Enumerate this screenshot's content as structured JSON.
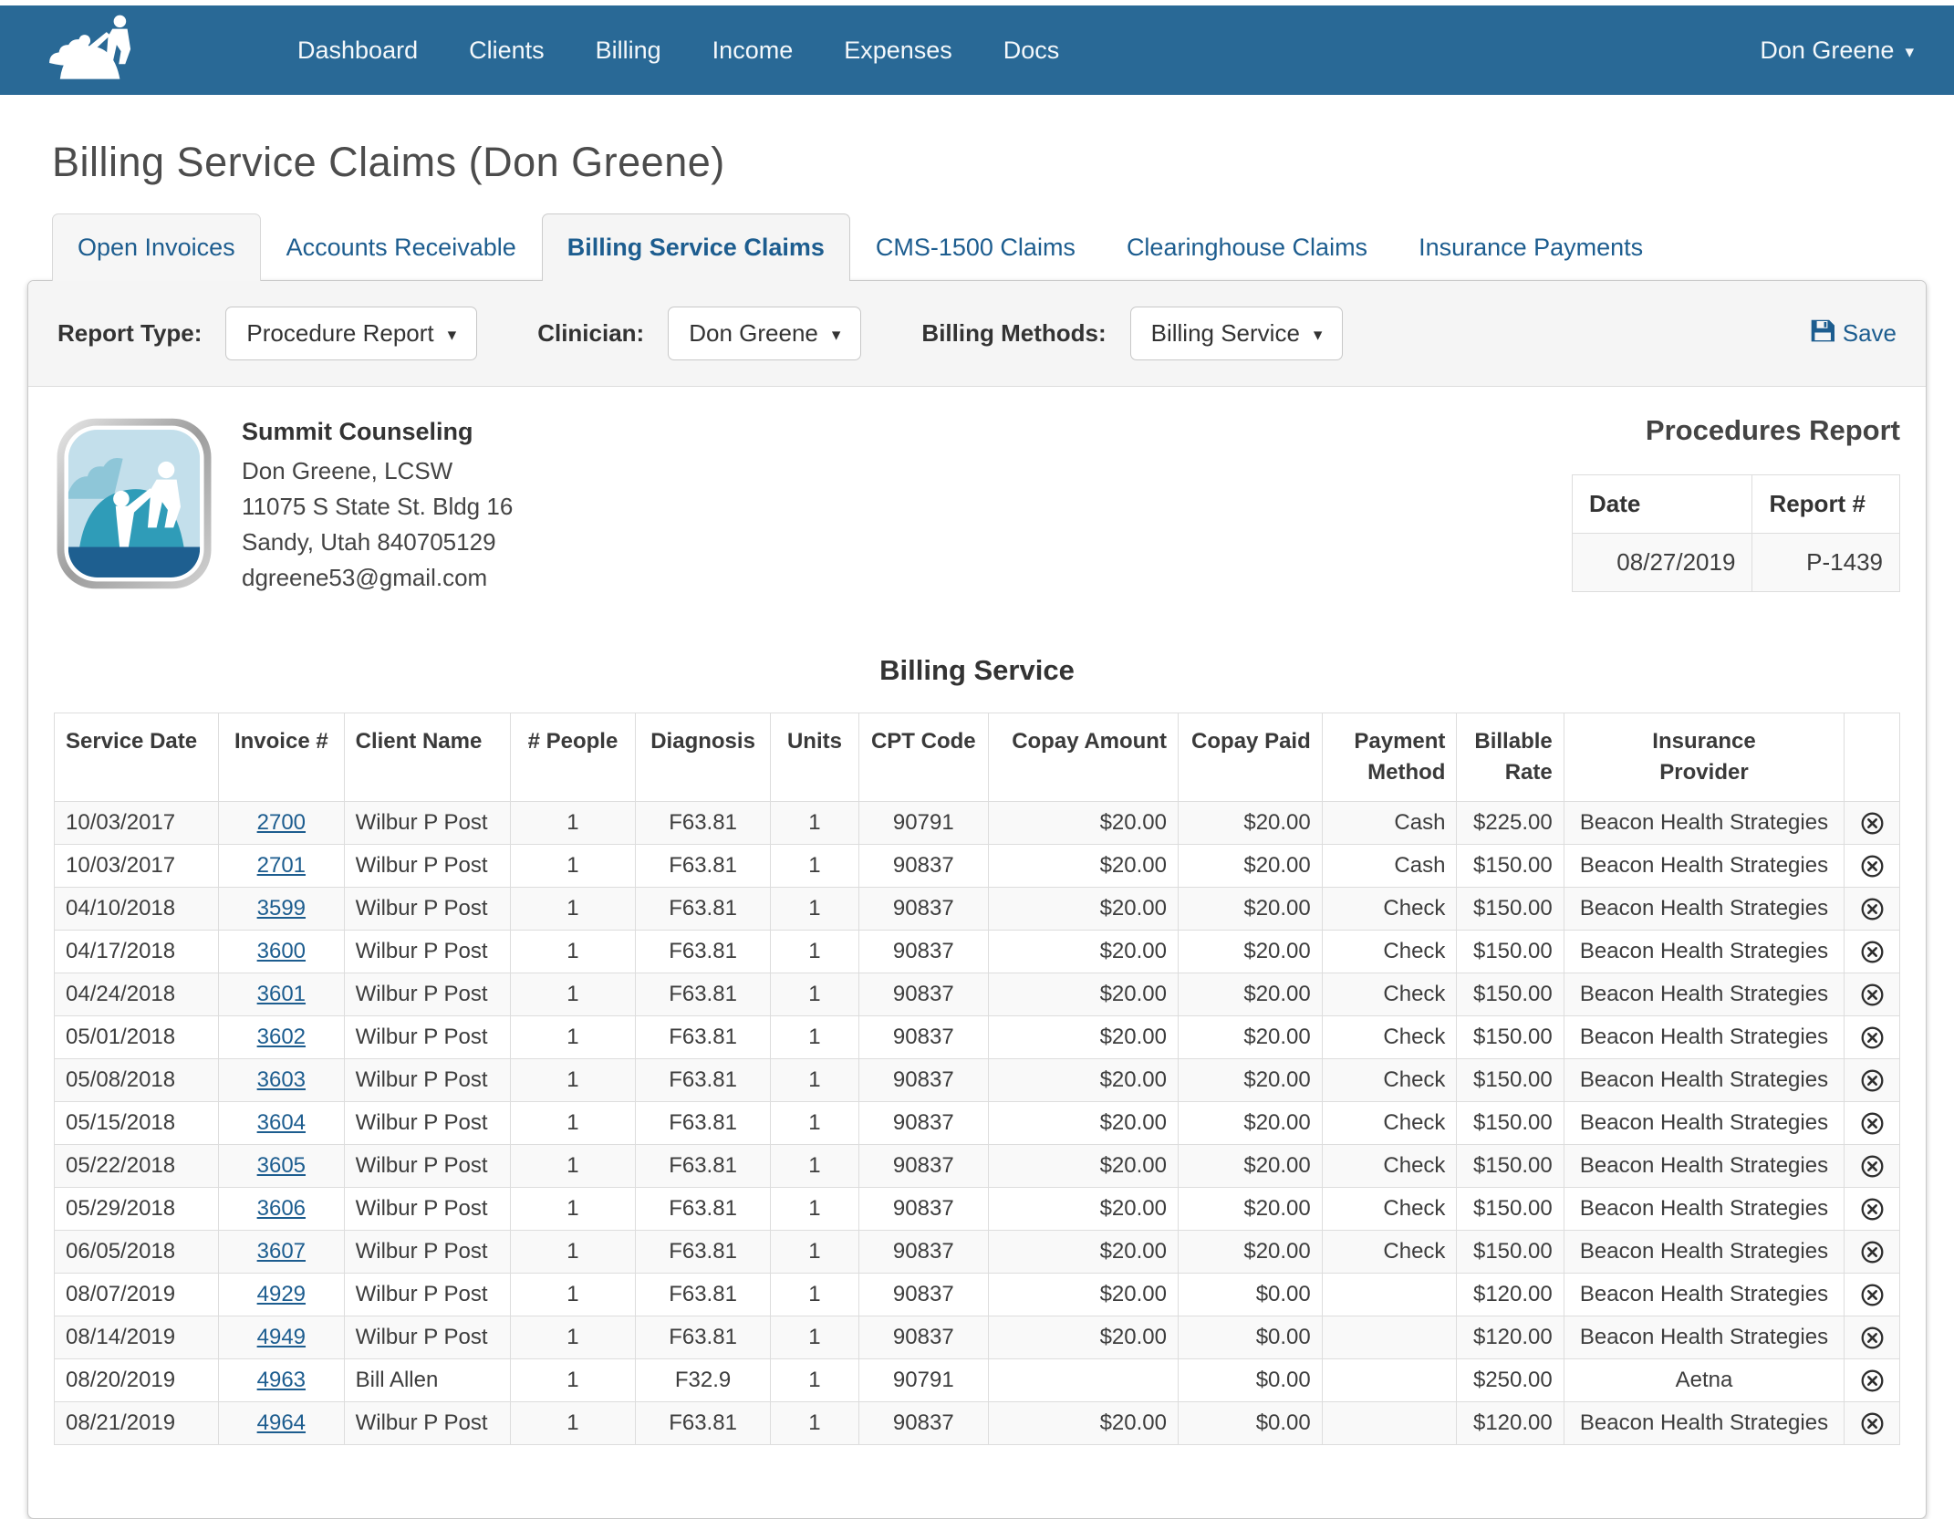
{
  "colors": {
    "navbar_blue": "#296996",
    "link_blue": "#1d5d8f"
  },
  "nav": {
    "items": [
      "Dashboard",
      "Clients",
      "Billing",
      "Income",
      "Expenses",
      "Docs"
    ],
    "user": "Don Greene"
  },
  "page": {
    "title": "Billing Service Claims (Don Greene)"
  },
  "active_tab": "Billing Service Claims",
  "tabs": [
    {
      "label": "Open Invoices"
    },
    {
      "label": "Accounts Receivable"
    },
    {
      "label": "Billing Service Claims"
    },
    {
      "label": "CMS-1500 Claims"
    },
    {
      "label": "Clearinghouse Claims"
    },
    {
      "label": "Insurance Payments"
    }
  ],
  "filters": {
    "report_type": {
      "label": "Report Type:",
      "value": "Procedure Report"
    },
    "clinician": {
      "label": "Clinician:",
      "value": "Don Greene"
    },
    "billing_methods": {
      "label": "Billing Methods:",
      "value": "Billing Service"
    },
    "save_label": "Save"
  },
  "practice": {
    "name": "Summit Counseling",
    "clinician": "Don Greene, LCSW",
    "address_line1": "11075 S State St. Bldg 16",
    "address_line2": "Sandy, Utah 840705129",
    "email": "dgreene53@gmail.com"
  },
  "report_summary": {
    "title": "Procedures Report",
    "date_label": "Date",
    "report_number_label": "Report #",
    "date": "08/27/2019",
    "report_number": "P-1439"
  },
  "billing_table": {
    "title": "Billing Service",
    "columns": [
      "Service Date",
      "Invoice #",
      "Client Name",
      "# People",
      "Diagnosis",
      "Units",
      "CPT Code",
      "Copay Amount",
      "Copay Paid",
      "Payment\nMethod",
      "Billable\nRate",
      "Insurance\nProvider",
      ""
    ],
    "rows": [
      {
        "service_date": "10/03/2017",
        "invoice": "2700",
        "client": "Wilbur P Post",
        "people": "1",
        "diagnosis": "F63.81",
        "units": "1",
        "cpt": "90791",
        "copay_amount": "$20.00",
        "copay_paid": "$20.00",
        "payment_method": "Cash",
        "billable_rate": "$225.00",
        "insurance": "Beacon Health Strategies"
      },
      {
        "service_date": "10/03/2017",
        "invoice": "2701",
        "client": "Wilbur P Post",
        "people": "1",
        "diagnosis": "F63.81",
        "units": "1",
        "cpt": "90837",
        "copay_amount": "$20.00",
        "copay_paid": "$20.00",
        "payment_method": "Cash",
        "billable_rate": "$150.00",
        "insurance": "Beacon Health Strategies"
      },
      {
        "service_date": "04/10/2018",
        "invoice": "3599",
        "client": "Wilbur P Post",
        "people": "1",
        "diagnosis": "F63.81",
        "units": "1",
        "cpt": "90837",
        "copay_amount": "$20.00",
        "copay_paid": "$20.00",
        "payment_method": "Check",
        "billable_rate": "$150.00",
        "insurance": "Beacon Health Strategies"
      },
      {
        "service_date": "04/17/2018",
        "invoice": "3600",
        "client": "Wilbur P Post",
        "people": "1",
        "diagnosis": "F63.81",
        "units": "1",
        "cpt": "90837",
        "copay_amount": "$20.00",
        "copay_paid": "$20.00",
        "payment_method": "Check",
        "billable_rate": "$150.00",
        "insurance": "Beacon Health Strategies"
      },
      {
        "service_date": "04/24/2018",
        "invoice": "3601",
        "client": "Wilbur P Post",
        "people": "1",
        "diagnosis": "F63.81",
        "units": "1",
        "cpt": "90837",
        "copay_amount": "$20.00",
        "copay_paid": "$20.00",
        "payment_method": "Check",
        "billable_rate": "$150.00",
        "insurance": "Beacon Health Strategies"
      },
      {
        "service_date": "05/01/2018",
        "invoice": "3602",
        "client": "Wilbur P Post",
        "people": "1",
        "diagnosis": "F63.81",
        "units": "1",
        "cpt": "90837",
        "copay_amount": "$20.00",
        "copay_paid": "$20.00",
        "payment_method": "Check",
        "billable_rate": "$150.00",
        "insurance": "Beacon Health Strategies"
      },
      {
        "service_date": "05/08/2018",
        "invoice": "3603",
        "client": "Wilbur P Post",
        "people": "1",
        "diagnosis": "F63.81",
        "units": "1",
        "cpt": "90837",
        "copay_amount": "$20.00",
        "copay_paid": "$20.00",
        "payment_method": "Check",
        "billable_rate": "$150.00",
        "insurance": "Beacon Health Strategies"
      },
      {
        "service_date": "05/15/2018",
        "invoice": "3604",
        "client": "Wilbur P Post",
        "people": "1",
        "diagnosis": "F63.81",
        "units": "1",
        "cpt": "90837",
        "copay_amount": "$20.00",
        "copay_paid": "$20.00",
        "payment_method": "Check",
        "billable_rate": "$150.00",
        "insurance": "Beacon Health Strategies"
      },
      {
        "service_date": "05/22/2018",
        "invoice": "3605",
        "client": "Wilbur P Post",
        "people": "1",
        "diagnosis": "F63.81",
        "units": "1",
        "cpt": "90837",
        "copay_amount": "$20.00",
        "copay_paid": "$20.00",
        "payment_method": "Check",
        "billable_rate": "$150.00",
        "insurance": "Beacon Health Strategies"
      },
      {
        "service_date": "05/29/2018",
        "invoice": "3606",
        "client": "Wilbur P Post",
        "people": "1",
        "diagnosis": "F63.81",
        "units": "1",
        "cpt": "90837",
        "copay_amount": "$20.00",
        "copay_paid": "$20.00",
        "payment_method": "Check",
        "billable_rate": "$150.00",
        "insurance": "Beacon Health Strategies"
      },
      {
        "service_date": "06/05/2018",
        "invoice": "3607",
        "client": "Wilbur P Post",
        "people": "1",
        "diagnosis": "F63.81",
        "units": "1",
        "cpt": "90837",
        "copay_amount": "$20.00",
        "copay_paid": "$20.00",
        "payment_method": "Check",
        "billable_rate": "$150.00",
        "insurance": "Beacon Health Strategies"
      },
      {
        "service_date": "08/07/2019",
        "invoice": "4929",
        "client": "Wilbur P Post",
        "people": "1",
        "diagnosis": "F63.81",
        "units": "1",
        "cpt": "90837",
        "copay_amount": "$20.00",
        "copay_paid": "$0.00",
        "payment_method": "",
        "billable_rate": "$120.00",
        "insurance": "Beacon Health Strategies"
      },
      {
        "service_date": "08/14/2019",
        "invoice": "4949",
        "client": "Wilbur P Post",
        "people": "1",
        "diagnosis": "F63.81",
        "units": "1",
        "cpt": "90837",
        "copay_amount": "$20.00",
        "copay_paid": "$0.00",
        "payment_method": "",
        "billable_rate": "$120.00",
        "insurance": "Beacon Health Strategies"
      },
      {
        "service_date": "08/20/2019",
        "invoice": "4963",
        "client": "Bill Allen",
        "people": "1",
        "diagnosis": "F32.9",
        "units": "1",
        "cpt": "90791",
        "copay_amount": "",
        "copay_paid": "$0.00",
        "payment_method": "",
        "billable_rate": "$250.00",
        "insurance": "Aetna"
      },
      {
        "service_date": "08/21/2019",
        "invoice": "4964",
        "client": "Wilbur P Post",
        "people": "1",
        "diagnosis": "F63.81",
        "units": "1",
        "cpt": "90837",
        "copay_amount": "$20.00",
        "copay_paid": "$0.00",
        "payment_method": "",
        "billable_rate": "$120.00",
        "insurance": "Beacon Health Strategies"
      }
    ]
  }
}
